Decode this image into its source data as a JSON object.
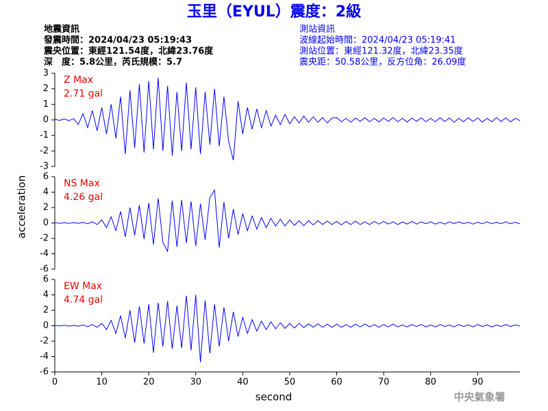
{
  "header": {
    "title": "玉里（EYUL）震度：2級",
    "left": [
      "地震資訊",
      "發震時間：2024/04/23 05:19:43",
      "震央位置：東經121.54度，北緯23.76度",
      "深　度：5.8公里，芮氏規模：5.7"
    ],
    "right": [
      "測站資訊",
      "波線起始時間：2024/04/23 05:19:41",
      "測站位置：東經121.32度，北緯23.35度",
      "震央距：50.58公里，反方位角：26.09度"
    ],
    "y_label": "acceleration",
    "footer": "中央氣象署"
  },
  "chart_data": [
    {
      "type": "line",
      "annotations": [
        "Z Max",
        "2.71 gal"
      ],
      "color": "#0000ff",
      "xlim": [
        0,
        99
      ],
      "ylim": [
        -3,
        3
      ],
      "yticks": [
        -3,
        -2,
        -1,
        0,
        1,
        2,
        3
      ],
      "x": [
        0,
        1,
        2,
        3,
        4,
        5,
        6,
        7,
        8,
        9,
        10,
        11,
        12,
        13,
        14,
        15,
        16,
        17,
        18,
        19,
        20,
        21,
        22,
        23,
        24,
        25,
        26,
        27,
        28,
        29,
        30,
        31,
        32,
        33,
        34,
        35,
        36,
        37,
        38,
        39,
        40,
        41,
        42,
        43,
        44,
        45,
        46,
        47,
        48,
        49,
        50,
        51,
        52,
        53,
        54,
        55,
        56,
        57,
        58,
        59,
        60,
        61,
        62,
        63,
        64,
        65,
        66,
        67,
        68,
        69,
        70,
        71,
        72,
        73,
        74,
        75,
        76,
        77,
        78,
        79,
        80,
        81,
        82,
        83,
        84,
        85,
        86,
        87,
        88,
        89,
        90,
        91,
        92,
        93,
        94,
        95,
        96,
        97,
        98,
        99
      ],
      "values": [
        0.05,
        -0.04,
        0.06,
        -0.05,
        0.08,
        -0.3,
        0.4,
        -0.5,
        0.6,
        -0.7,
        0.8,
        -0.9,
        1.0,
        -1.2,
        1.5,
        -2.2,
        1.9,
        -1.8,
        2.3,
        -2.1,
        2.5,
        -1.9,
        2.71,
        -2.0,
        2.2,
        -2.3,
        1.8,
        -2.0,
        2.4,
        -1.9,
        2.1,
        -2.2,
        1.8,
        -1.6,
        2.0,
        -1.7,
        1.5,
        -1.4,
        -2.6,
        1.2,
        -0.9,
        0.8,
        -0.6,
        0.7,
        -0.5,
        0.6,
        -0.4,
        0.3,
        -0.3,
        0.35,
        -0.25,
        0.2,
        -0.2,
        0.25,
        -0.15,
        0.2,
        -0.15,
        0.15,
        -0.2,
        0.12,
        0.15,
        -0.12,
        0.1,
        -0.15,
        0.12,
        -0.1,
        0.14,
        -0.12,
        0.1,
        -0.13,
        0.12,
        -0.1,
        0.15,
        -0.12,
        0.1,
        -0.14,
        0.12,
        -0.1,
        0.13,
        -0.12,
        0.1,
        -0.12,
        0.14,
        -0.1,
        0.12,
        -0.15,
        0.1,
        -0.12,
        0.13,
        -0.1,
        0.12,
        -0.14,
        0.1,
        -0.12,
        0.15,
        -0.1,
        0.12,
        -0.13,
        0.1,
        -0.05
      ]
    },
    {
      "type": "line",
      "annotations": [
        "NS Max",
        "4.26 gal"
      ],
      "color": "#0000ff",
      "xlim": [
        0,
        99
      ],
      "ylim": [
        -6,
        6
      ],
      "yticks": [
        -6,
        -4,
        -2,
        0,
        2,
        4,
        6
      ],
      "x": [
        0,
        1,
        2,
        3,
        4,
        5,
        6,
        7,
        8,
        9,
        10,
        11,
        12,
        13,
        14,
        15,
        16,
        17,
        18,
        19,
        20,
        21,
        22,
        23,
        24,
        25,
        26,
        27,
        28,
        29,
        30,
        31,
        32,
        33,
        34,
        35,
        36,
        37,
        38,
        39,
        40,
        41,
        42,
        43,
        44,
        45,
        46,
        47,
        48,
        49,
        50,
        51,
        52,
        53,
        54,
        55,
        56,
        57,
        58,
        59,
        60,
        61,
        62,
        63,
        64,
        65,
        66,
        67,
        68,
        69,
        70,
        71,
        72,
        73,
        74,
        75,
        76,
        77,
        78,
        79,
        80,
        81,
        82,
        83,
        84,
        85,
        86,
        87,
        88,
        89,
        90,
        91,
        92,
        93,
        94,
        95,
        96,
        97,
        98,
        99
      ],
      "values": [
        0.05,
        -0.05,
        0.04,
        -0.06,
        0.05,
        -0.05,
        0.08,
        -0.1,
        0.15,
        -0.2,
        0.4,
        -0.6,
        0.8,
        -1.0,
        1.5,
        -1.8,
        2.0,
        -1.6,
        2.3,
        -2.1,
        2.6,
        -2.8,
        3.2,
        -2.5,
        -3.7,
        2.9,
        -3.1,
        3.0,
        -2.6,
        2.8,
        -3.0,
        2.5,
        -2.2,
        3.3,
        4.26,
        -3.2,
        2.7,
        -2.0,
        1.8,
        -1.5,
        1.2,
        -1.0,
        0.9,
        -0.8,
        0.7,
        -0.6,
        0.6,
        -0.4,
        0.5,
        -0.4,
        0.4,
        -0.3,
        0.3,
        -0.35,
        0.3,
        -0.25,
        0.3,
        -0.2,
        0.25,
        -0.2,
        0.2,
        -0.25,
        0.2,
        -0.2,
        0.25,
        -0.2,
        0.15,
        -0.2,
        0.2,
        -0.15,
        0.2,
        -0.15,
        0.15,
        -0.2,
        0.15,
        -0.15,
        0.2,
        -0.15,
        0.15,
        -0.1,
        0.15,
        -0.15,
        0.1,
        -0.15,
        0.15,
        -0.1,
        0.15,
        -0.1,
        0.1,
        -0.15,
        0.1,
        -0.1,
        0.15,
        -0.1,
        0.1,
        -0.1,
        0.15,
        -0.1,
        0.1,
        -0.1
      ]
    },
    {
      "type": "line",
      "annotations": [
        "EW Max",
        "4.74 gal"
      ],
      "color": "#0000ff",
      "xlim": [
        0,
        99
      ],
      "ylim": [
        -6,
        6
      ],
      "yticks": [
        -6,
        -4,
        -2,
        0,
        2,
        4,
        6
      ],
      "xticks": [
        0,
        10,
        20,
        30,
        40,
        50,
        60,
        70,
        80,
        90
      ],
      "x_label": "second",
      "x": [
        0,
        1,
        2,
        3,
        4,
        5,
        6,
        7,
        8,
        9,
        10,
        11,
        12,
        13,
        14,
        15,
        16,
        17,
        18,
        19,
        20,
        21,
        22,
        23,
        24,
        25,
        26,
        27,
        28,
        29,
        30,
        31,
        32,
        33,
        34,
        35,
        36,
        37,
        38,
        39,
        40,
        41,
        42,
        43,
        44,
        45,
        46,
        47,
        48,
        49,
        50,
        51,
        52,
        53,
        54,
        55,
        56,
        57,
        58,
        59,
        60,
        61,
        62,
        63,
        64,
        65,
        66,
        67,
        68,
        69,
        70,
        71,
        72,
        73,
        74,
        75,
        76,
        77,
        78,
        79,
        80,
        81,
        82,
        83,
        84,
        85,
        86,
        87,
        88,
        89,
        90,
        91,
        92,
        93,
        94,
        95,
        96,
        97,
        98,
        99
      ],
      "values": [
        0.05,
        -0.04,
        0.06,
        -0.05,
        0.04,
        -0.06,
        0.1,
        -0.12,
        0.15,
        -0.2,
        0.3,
        -0.5,
        0.7,
        -1.0,
        1.3,
        -1.6,
        2.0,
        -2.2,
        2.5,
        -2.3,
        2.8,
        -3.5,
        3.0,
        -2.7,
        3.2,
        -3.0,
        2.6,
        -2.9,
        3.9,
        -3.2,
        4.0,
        -4.74,
        3.3,
        -3.6,
        2.8,
        -2.7,
        2.4,
        -2.0,
        1.8,
        -1.4,
        1.1,
        -1.0,
        0.8,
        -0.7,
        0.6,
        -0.5,
        0.5,
        -0.4,
        0.4,
        -0.35,
        0.3,
        -0.3,
        0.3,
        -0.25,
        0.25,
        -0.2,
        0.25,
        -0.2,
        0.2,
        -0.2,
        0.2,
        -0.2,
        0.15,
        -0.2,
        0.2,
        -0.15,
        0.2,
        -0.15,
        0.15,
        -0.2,
        0.15,
        -0.15,
        0.2,
        -0.15,
        0.1,
        -0.15,
        0.15,
        -0.1,
        0.15,
        -0.15,
        0.1,
        -0.15,
        0.15,
        -0.1,
        0.1,
        -0.15,
        0.15,
        -0.1,
        0.1,
        -0.15,
        0.15,
        -0.1,
        0.1,
        -0.15,
        0.1,
        -0.1,
        0.15,
        -0.1,
        0.1,
        -0.05
      ]
    }
  ]
}
